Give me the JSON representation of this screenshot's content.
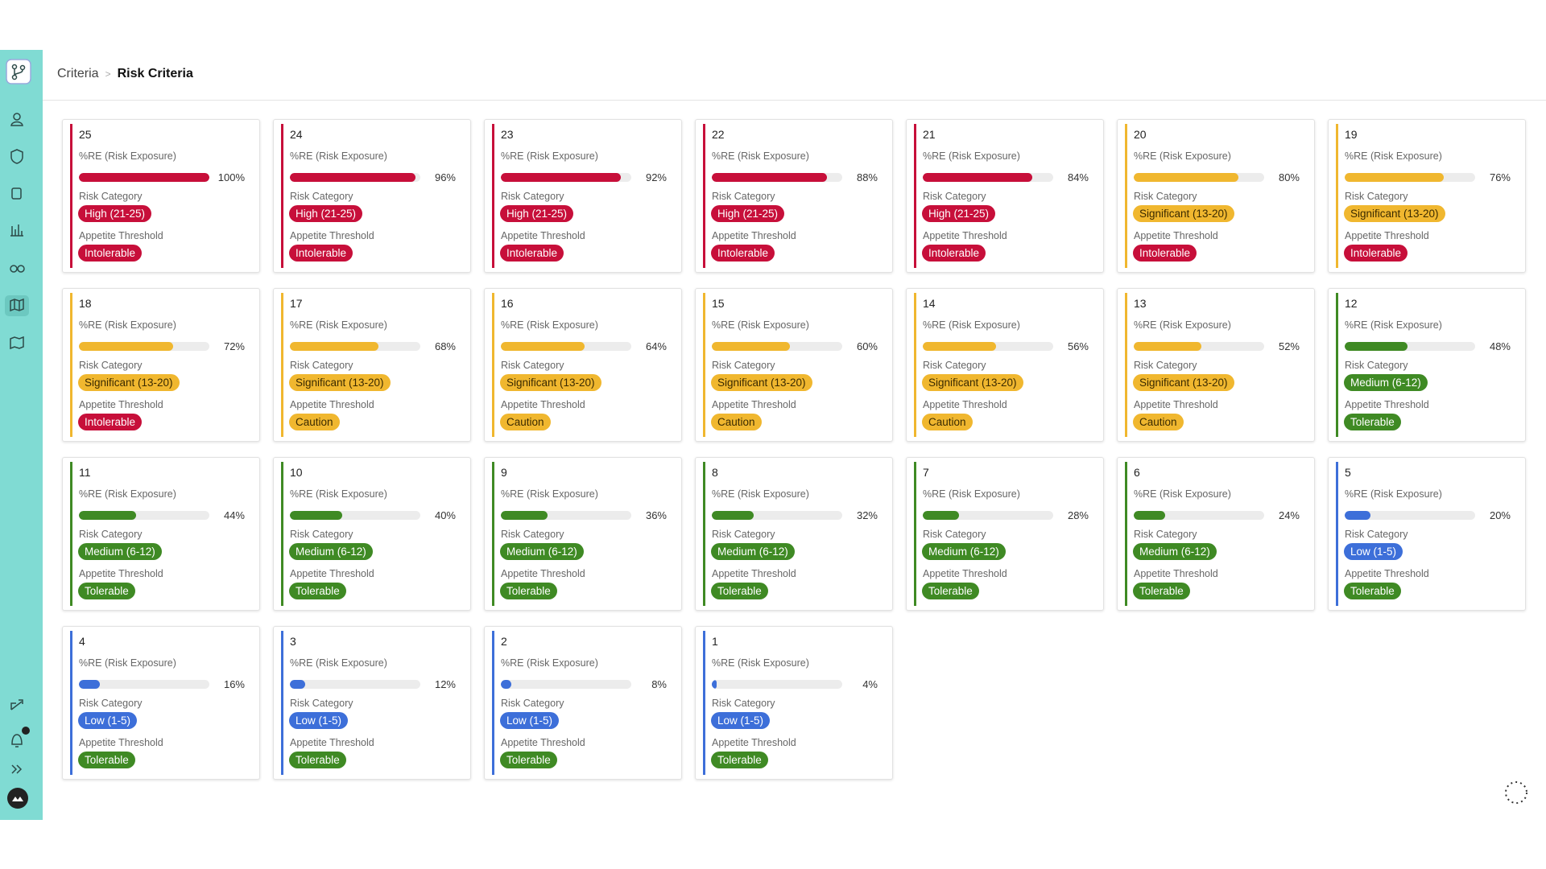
{
  "breadcrumb": {
    "parent": "Criteria",
    "current": "Risk Criteria"
  },
  "card_labels": {
    "exposure": "%RE (Risk Exposure)",
    "category": "Risk Category",
    "threshold": "Appetite Threshold"
  },
  "cards": [
    {
      "number": 25,
      "exposure": {
        "value": 100,
        "label": "100%"
      },
      "category": {
        "label": "High (21-25)",
        "color": "#c70f3a"
      },
      "threshold": {
        "label": "Intolerable",
        "color": "#c70f3a"
      }
    },
    {
      "number": 24,
      "exposure": {
        "value": 96,
        "label": "96%"
      },
      "category": {
        "label": "High (21-25)",
        "color": "#c70f3a"
      },
      "threshold": {
        "label": "Intolerable",
        "color": "#c70f3a"
      }
    },
    {
      "number": 23,
      "exposure": {
        "value": 92,
        "label": "92%"
      },
      "category": {
        "label": "High (21-25)",
        "color": "#c70f3a"
      },
      "threshold": {
        "label": "Intolerable",
        "color": "#c70f3a"
      }
    },
    {
      "number": 22,
      "exposure": {
        "value": 88,
        "label": "88%"
      },
      "category": {
        "label": "High (21-25)",
        "color": "#c70f3a"
      },
      "threshold": {
        "label": "Intolerable",
        "color": "#c70f3a"
      }
    },
    {
      "number": 21,
      "exposure": {
        "value": 84,
        "label": "84%"
      },
      "category": {
        "label": "High (21-25)",
        "color": "#c70f3a"
      },
      "threshold": {
        "label": "Intolerable",
        "color": "#c70f3a"
      }
    },
    {
      "number": 20,
      "exposure": {
        "value": 80,
        "label": "80%"
      },
      "category": {
        "label": "Significant (13-20)",
        "color": "#f0b72f"
      },
      "threshold": {
        "label": "Intolerable",
        "color": "#c70f3a"
      }
    },
    {
      "number": 19,
      "exposure": {
        "value": 76,
        "label": "76%"
      },
      "category": {
        "label": "Significant (13-20)",
        "color": "#f0b72f"
      },
      "threshold": {
        "label": "Intolerable",
        "color": "#c70f3a"
      }
    },
    {
      "number": 18,
      "exposure": {
        "value": 72,
        "label": "72%"
      },
      "category": {
        "label": "Significant (13-20)",
        "color": "#f0b72f"
      },
      "threshold": {
        "label": "Intolerable",
        "color": "#c70f3a"
      }
    },
    {
      "number": 17,
      "exposure": {
        "value": 68,
        "label": "68%"
      },
      "category": {
        "label": "Significant (13-20)",
        "color": "#f0b72f"
      },
      "threshold": {
        "label": "Caution",
        "color": "#f0b72f"
      }
    },
    {
      "number": 16,
      "exposure": {
        "value": 64,
        "label": "64%"
      },
      "category": {
        "label": "Significant (13-20)",
        "color": "#f0b72f"
      },
      "threshold": {
        "label": "Caution",
        "color": "#f0b72f"
      }
    },
    {
      "number": 15,
      "exposure": {
        "value": 60,
        "label": "60%"
      },
      "category": {
        "label": "Significant (13-20)",
        "color": "#f0b72f"
      },
      "threshold": {
        "label": "Caution",
        "color": "#f0b72f"
      }
    },
    {
      "number": 14,
      "exposure": {
        "value": 56,
        "label": "56%"
      },
      "category": {
        "label": "Significant (13-20)",
        "color": "#f0b72f"
      },
      "threshold": {
        "label": "Caution",
        "color": "#f0b72f"
      }
    },
    {
      "number": 13,
      "exposure": {
        "value": 52,
        "label": "52%"
      },
      "category": {
        "label": "Significant (13-20)",
        "color": "#f0b72f"
      },
      "threshold": {
        "label": "Caution",
        "color": "#f0b72f"
      }
    },
    {
      "number": 12,
      "exposure": {
        "value": 48,
        "label": "48%"
      },
      "category": {
        "label": "Medium (6-12)",
        "color": "#3f8a24"
      },
      "threshold": {
        "label": "Tolerable",
        "color": "#3f8a24"
      }
    },
    {
      "number": 11,
      "exposure": {
        "value": 44,
        "label": "44%"
      },
      "category": {
        "label": "Medium (6-12)",
        "color": "#3f8a24"
      },
      "threshold": {
        "label": "Tolerable",
        "color": "#3f8a24"
      }
    },
    {
      "number": 10,
      "exposure": {
        "value": 40,
        "label": "40%"
      },
      "category": {
        "label": "Medium (6-12)",
        "color": "#3f8a24"
      },
      "threshold": {
        "label": "Tolerable",
        "color": "#3f8a24"
      }
    },
    {
      "number": 9,
      "exposure": {
        "value": 36,
        "label": "36%"
      },
      "category": {
        "label": "Medium (6-12)",
        "color": "#3f8a24"
      },
      "threshold": {
        "label": "Tolerable",
        "color": "#3f8a24"
      }
    },
    {
      "number": 8,
      "exposure": {
        "value": 32,
        "label": "32%"
      },
      "category": {
        "label": "Medium (6-12)",
        "color": "#3f8a24"
      },
      "threshold": {
        "label": "Tolerable",
        "color": "#3f8a24"
      }
    },
    {
      "number": 7,
      "exposure": {
        "value": 28,
        "label": "28%"
      },
      "category": {
        "label": "Medium (6-12)",
        "color": "#3f8a24"
      },
      "threshold": {
        "label": "Tolerable",
        "color": "#3f8a24"
      }
    },
    {
      "number": 6,
      "exposure": {
        "value": 24,
        "label": "24%"
      },
      "category": {
        "label": "Medium (6-12)",
        "color": "#3f8a24"
      },
      "threshold": {
        "label": "Tolerable",
        "color": "#3f8a24"
      }
    },
    {
      "number": 5,
      "exposure": {
        "value": 20,
        "label": "20%"
      },
      "category": {
        "label": "Low (1-5)",
        "color": "#3d6fd9"
      },
      "threshold": {
        "label": "Tolerable",
        "color": "#3f8a24"
      }
    },
    {
      "number": 4,
      "exposure": {
        "value": 16,
        "label": "16%"
      },
      "category": {
        "label": "Low (1-5)",
        "color": "#3d6fd9"
      },
      "threshold": {
        "label": "Tolerable",
        "color": "#3f8a24"
      }
    },
    {
      "number": 3,
      "exposure": {
        "value": 12,
        "label": "12%"
      },
      "category": {
        "label": "Low (1-5)",
        "color": "#3d6fd9"
      },
      "threshold": {
        "label": "Tolerable",
        "color": "#3f8a24"
      }
    },
    {
      "number": 2,
      "exposure": {
        "value": 8,
        "label": "8%"
      },
      "category": {
        "label": "Low (1-5)",
        "color": "#3d6fd9"
      },
      "threshold": {
        "label": "Tolerable",
        "color": "#3f8a24"
      }
    },
    {
      "number": 1,
      "exposure": {
        "value": 4,
        "label": "4%"
      },
      "category": {
        "label": "Low (1-5)",
        "color": "#3d6fd9"
      },
      "threshold": {
        "label": "Tolerable",
        "color": "#3f8a24"
      }
    }
  ]
}
